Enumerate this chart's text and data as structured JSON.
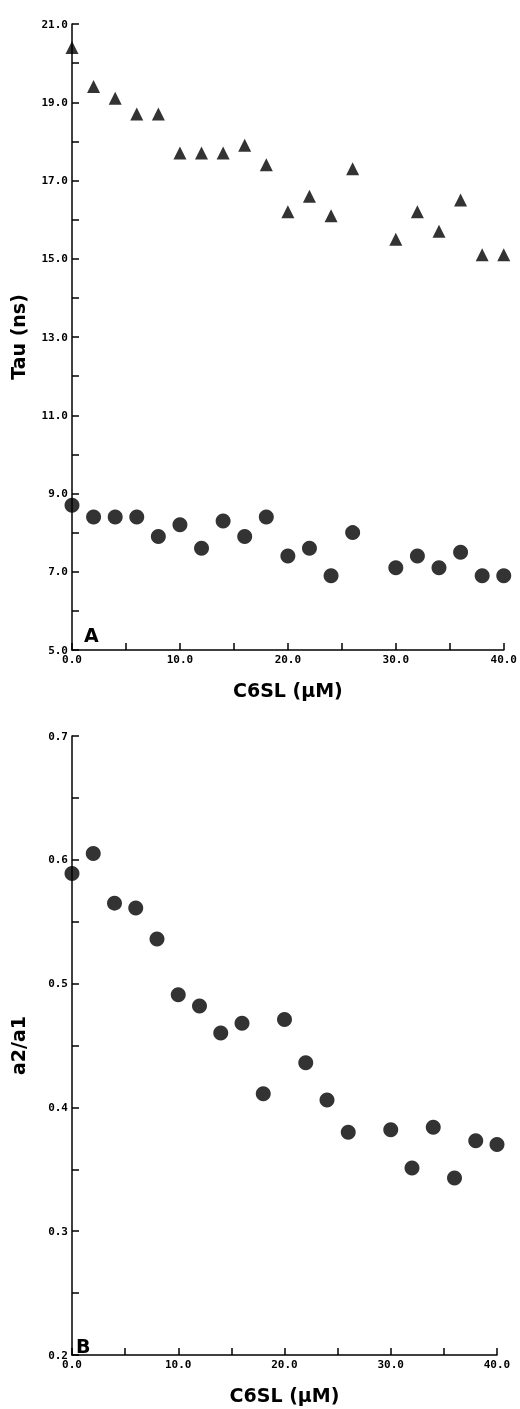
{
  "chart_data": [
    {
      "type": "scatter",
      "ylabel": "Tau (ns)",
      "xlabel": "C6SL (µM)",
      "annotations": [
        "A"
      ],
      "x": [
        0,
        2,
        4,
        6,
        8,
        10,
        12,
        14,
        16,
        18,
        20,
        22,
        24,
        26,
        30,
        32,
        34,
        36,
        38,
        40
      ],
      "series": [
        {
          "color": "#000000",
          "marker": "triangle",
          "values": [
            20.4,
            19.4,
            19.1,
            18.7,
            18.7,
            17.7,
            17.7,
            17.7,
            17.9,
            17.4,
            16.2,
            16.6,
            16.1,
            17.3,
            15.5,
            16.2,
            15.7,
            16.5,
            15.1,
            15.1
          ]
        },
        {
          "color": "#000000",
          "marker": "circle",
          "values": [
            8.7,
            8.4,
            8.4,
            8.4,
            7.9,
            8.2,
            7.6,
            8.3,
            7.9,
            8.4,
            7.4,
            7.6,
            6.9,
            8.0,
            7.1,
            7.4,
            7.1,
            7.5,
            6.9,
            6.9
          ]
        }
      ],
      "xlim": [
        0,
        40
      ],
      "xticks": [
        {
          "value": 0,
          "label": "0.0"
        },
        {
          "value": 5,
          "label": null
        },
        {
          "value": 10,
          "label": "10.0"
        },
        {
          "value": 15,
          "label": null
        },
        {
          "value": 20,
          "label": "20.0"
        },
        {
          "value": 25,
          "label": null
        },
        {
          "value": 30,
          "label": "30.0"
        },
        {
          "value": 35,
          "label": null
        },
        {
          "value": 40,
          "label": "40.0"
        }
      ],
      "ylim": [
        5,
        21
      ],
      "yticks": [
        {
          "value": 5,
          "label": "5.0"
        },
        {
          "value": 6,
          "label": null
        },
        {
          "value": 7,
          "label": "7.0"
        },
        {
          "value": 8,
          "label": null
        },
        {
          "value": 9,
          "label": "9.0"
        },
        {
          "value": 10,
          "label": null
        },
        {
          "value": 11,
          "label": "11.0"
        },
        {
          "value": 12,
          "label": null
        },
        {
          "value": 13,
          "label": "13.0"
        },
        {
          "value": 14,
          "label": null
        },
        {
          "value": 15,
          "label": "15.0"
        },
        {
          "value": 16,
          "label": null
        },
        {
          "value": 17,
          "label": "17.0"
        },
        {
          "value": 18,
          "label": null
        },
        {
          "value": 19,
          "label": "19.0"
        },
        {
          "value": 20,
          "label": null
        },
        {
          "value": 21,
          "label": "21.0"
        }
      ],
      "grid": false
    },
    {
      "type": "scatter",
      "ylabel": "a2/a1",
      "xlabel": "C6SL (µM)",
      "annotations": [
        "B"
      ],
      "x": [
        0,
        2,
        4,
        6,
        8,
        10,
        12,
        14,
        16,
        18,
        20,
        22,
        24,
        26,
        30,
        32,
        34,
        36,
        38,
        40
      ],
      "series": [
        {
          "color": "#000000",
          "marker": "circle",
          "values": [
            0.589,
            0.605,
            0.565,
            0.561,
            0.536,
            0.491,
            0.482,
            0.46,
            0.468,
            0.411,
            0.471,
            0.436,
            0.406,
            0.38,
            0.382,
            0.351,
            0.384,
            0.343,
            0.373,
            0.37
          ]
        }
      ],
      "xlim": [
        0,
        40
      ],
      "xticks": [
        {
          "value": 0,
          "label": "0.0"
        },
        {
          "value": 5,
          "label": null
        },
        {
          "value": 10,
          "label": "10.0"
        },
        {
          "value": 15,
          "label": null
        },
        {
          "value": 20,
          "label": "20.0"
        },
        {
          "value": 25,
          "label": null
        },
        {
          "value": 30,
          "label": "30.0"
        },
        {
          "value": 35,
          "label": null
        },
        {
          "value": 40,
          "label": "40.0"
        }
      ],
      "ylim": [
        0.2,
        0.7
      ],
      "yticks": [
        {
          "value": 0.2,
          "label": "0.2"
        },
        {
          "value": 0.25,
          "label": null
        },
        {
          "value": 0.3,
          "label": "0.3"
        },
        {
          "value": 0.35,
          "label": null
        },
        {
          "value": 0.4,
          "label": "0.4"
        },
        {
          "value": 0.45,
          "label": null
        },
        {
          "value": 0.5,
          "label": "0.5"
        },
        {
          "value": 0.55,
          "label": null
        },
        {
          "value": 0.6,
          "label": "0.6"
        },
        {
          "value": 0.65,
          "label": null
        },
        {
          "value": 0.7,
          "label": "0.7"
        }
      ],
      "grid": false
    }
  ]
}
